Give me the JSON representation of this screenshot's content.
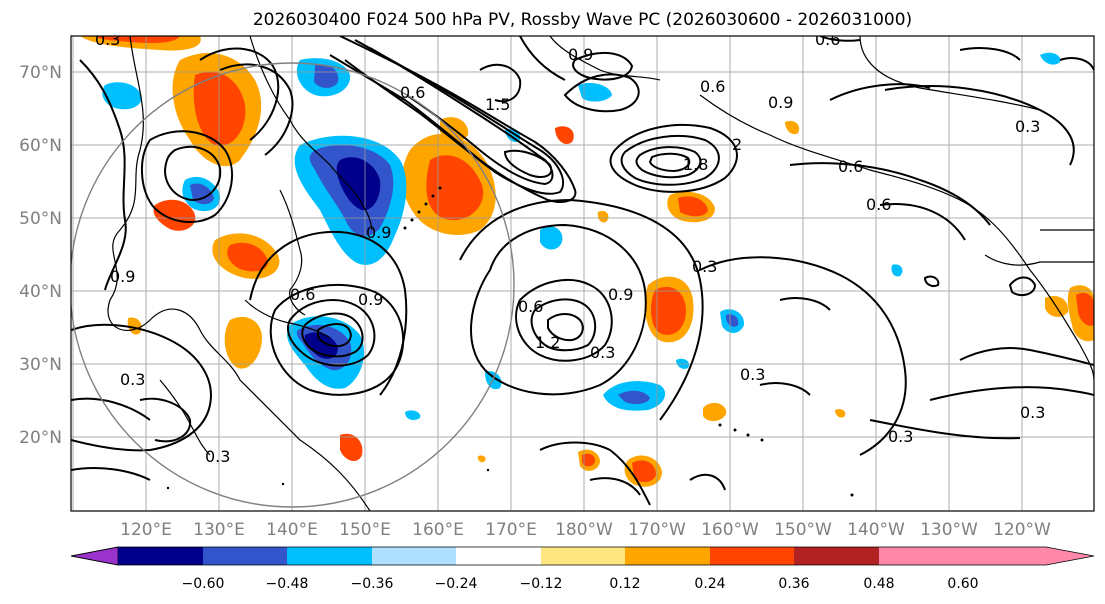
{
  "title": "2026030400 F024 500 hPa PV, Rossby Wave PC (2026030600 - 2026031000)",
  "lat_labels": [
    "70°N",
    "60°N",
    "50°N",
    "40°N",
    "30°N",
    "20°N"
  ],
  "lon_labels": [
    "120°E",
    "130°E",
    "140°E",
    "150°E",
    "160°E",
    "170°E",
    "180°W",
    "170°W",
    "160°W",
    "150°W",
    "140°W",
    "130°W",
    "120°W"
  ],
  "colorbar": {
    "ticks": [
      "−0.60",
      "−0.48",
      "−0.36",
      "−0.24",
      "−0.12",
      "0.12",
      "0.24",
      "0.36",
      "0.48",
      "0.60"
    ],
    "colors": [
      "#9933cc",
      "#00008b",
      "#3355cc",
      "#00bfff",
      "#b0e0ff",
      "#ffffff",
      "#ffe680",
      "#ffa500",
      "#ff4500",
      "#b22222",
      "#ff88aa"
    ]
  },
  "contour_labels": [
    "0.9",
    "0.6",
    "0.6",
    "0.9",
    "1.5",
    "1.8",
    "2",
    "0.6",
    "0.6",
    "0.3",
    "0.3",
    "0.9",
    "0.6",
    "1.2",
    "0.3",
    "0.3",
    "0.6",
    "0.9",
    "0.3",
    "0.3",
    "0.9",
    "0.3",
    "0.3",
    "0.3",
    "0.9",
    "0.6"
  ]
}
